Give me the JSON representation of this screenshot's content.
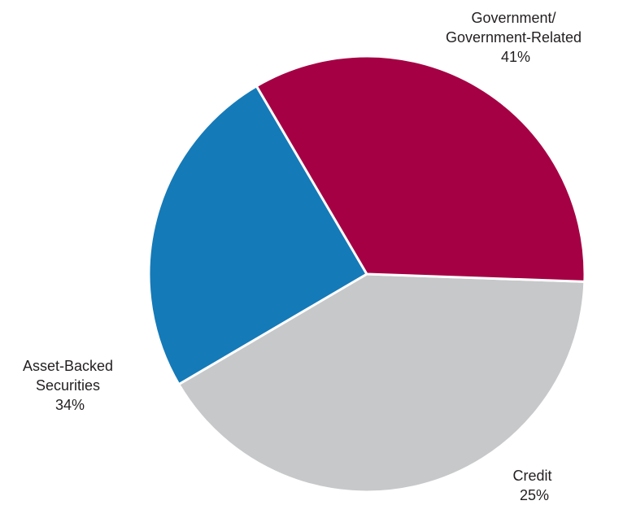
{
  "chart_data": {
    "type": "pie",
    "title": "",
    "slices": [
      {
        "label_lines": [
          "Government/",
          "Government-Related"
        ],
        "value": 41,
        "display": "41%",
        "color": "#c7c8ca"
      },
      {
        "label_lines": [
          "Credit"
        ],
        "value": 25,
        "display": "25%",
        "color": "#157ab8"
      },
      {
        "label_lines": [
          "Asset-Backed",
          "Securities"
        ],
        "value": 34,
        "display": "34%",
        "color": "#a50044"
      }
    ],
    "legend": "none",
    "labels": "outside"
  }
}
